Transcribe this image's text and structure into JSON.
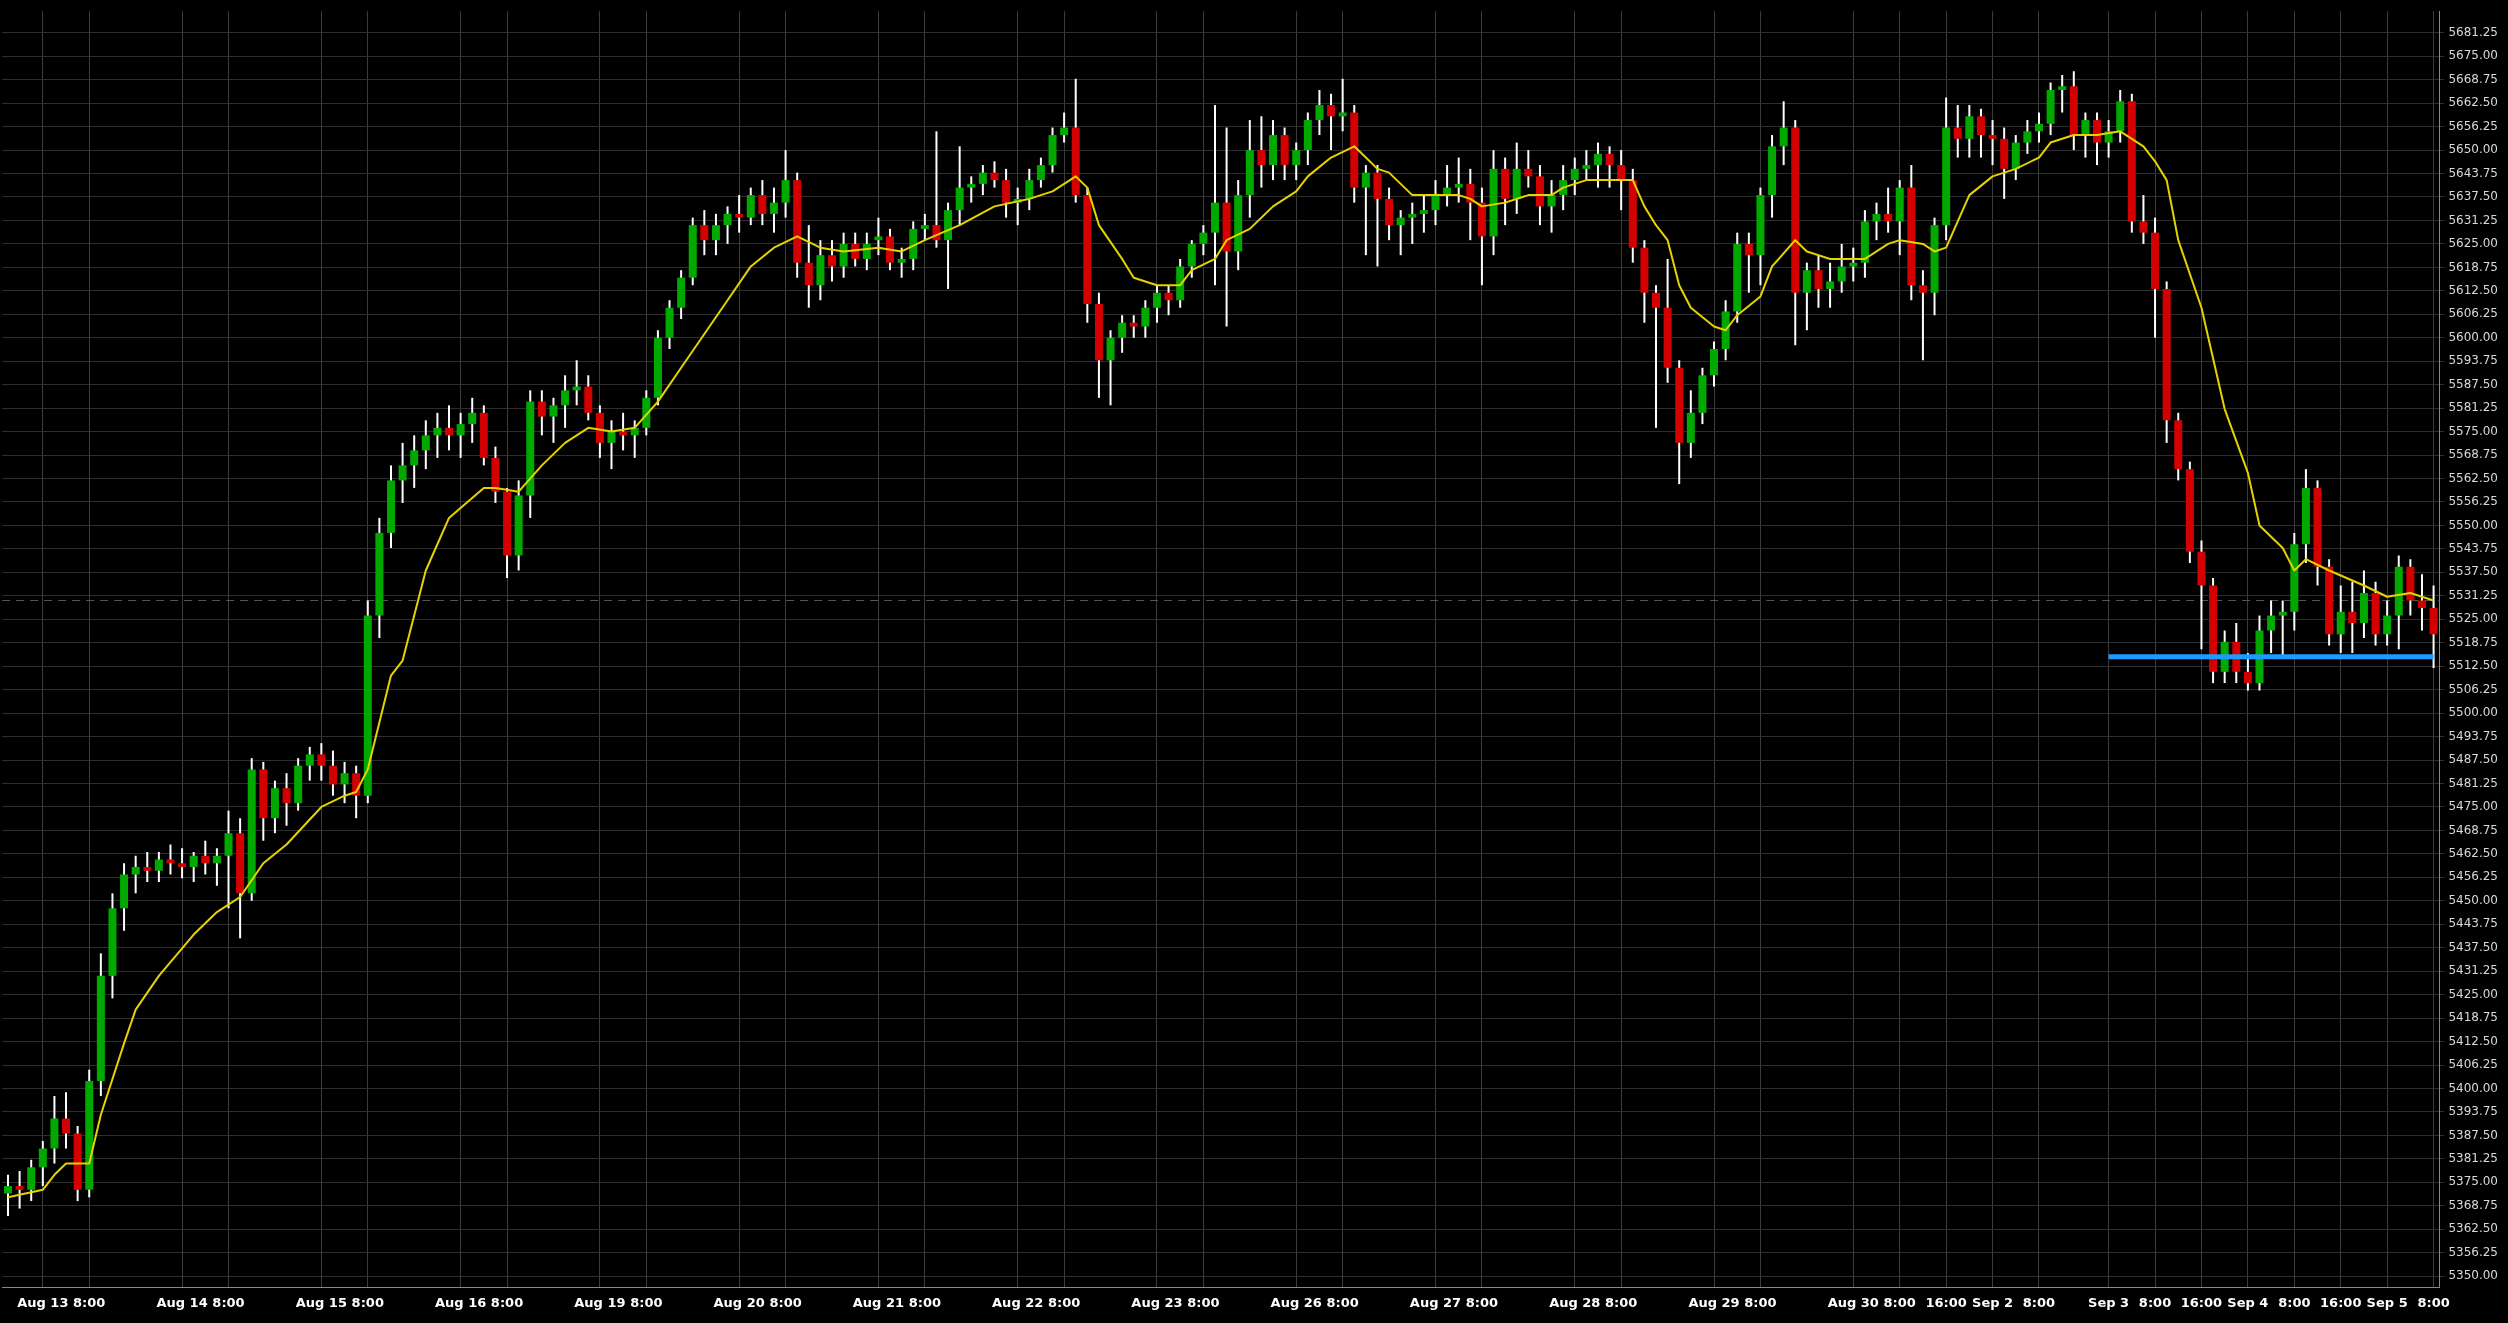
{
  "chart_data": {
    "type": "candlestick",
    "grid": true,
    "categories": [
      null,
      null,
      null,
      "Aug 13",
      null,
      null,
      null,
      "8:00",
      null,
      null,
      null,
      null,
      null,
      null,
      null,
      "Aug 14",
      null,
      null,
      null,
      "8:00",
      null,
      null,
      null,
      null,
      null,
      null,
      null,
      "Aug 15",
      null,
      null,
      null,
      "8:00",
      null,
      null,
      null,
      null,
      null,
      null,
      null,
      "Aug 16",
      null,
      null,
      null,
      "8:00",
      null,
      null,
      null,
      null,
      null,
      null,
      null,
      "Aug 19",
      null,
      null,
      null,
      "8:00",
      null,
      null,
      null,
      null,
      null,
      null,
      null,
      "Aug 20",
      null,
      null,
      null,
      "8:00",
      null,
      null,
      null,
      null,
      null,
      null,
      null,
      "Aug 21",
      null,
      null,
      null,
      "8:00",
      null,
      null,
      null,
      null,
      null,
      null,
      null,
      "Aug 22",
      null,
      null,
      null,
      "8:00",
      null,
      null,
      null,
      null,
      null,
      null,
      null,
      "Aug 23",
      null,
      null,
      null,
      "8:00",
      null,
      null,
      null,
      null,
      null,
      null,
      null,
      "Aug 26",
      null,
      null,
      null,
      "8:00",
      null,
      null,
      null,
      null,
      null,
      null,
      null,
      "Aug 27",
      null,
      null,
      null,
      "8:00",
      null,
      null,
      null,
      null,
      null,
      null,
      null,
      "Aug 28",
      null,
      null,
      null,
      "8:00",
      null,
      null,
      null,
      null,
      null,
      null,
      null,
      "Aug 29",
      null,
      null,
      null,
      "8:00",
      null,
      null,
      null,
      null,
      null,
      null,
      null,
      "Aug 30",
      null,
      null,
      null,
      "8:00",
      null,
      null,
      null,
      "16:00",
      null,
      null,
      null,
      "Sep 2",
      null,
      null,
      null,
      "8:00",
      null,
      null,
      null,
      null,
      null,
      "Sep 3",
      null,
      null,
      null,
      "8:00",
      null,
      null,
      null,
      "16:00",
      null,
      null,
      null,
      "Sep 4",
      null,
      null,
      null,
      "8:00",
      null,
      null,
      null,
      "16:00",
      null,
      null,
      null,
      "Sep 5",
      null,
      null,
      null,
      "8:00"
    ],
    "ohlc": [
      [
        5372,
        5377,
        5366,
        5374
      ],
      [
        5374,
        5378,
        5368,
        5373
      ],
      [
        5373,
        5381,
        5370,
        5379
      ],
      [
        5379,
        5386,
        5374,
        5384
      ],
      [
        5384,
        5398,
        5380,
        5392
      ],
      [
        5392,
        5399,
        5384,
        5388
      ],
      [
        5388,
        5390,
        5370,
        5373
      ],
      [
        5373,
        5405,
        5371,
        5402
      ],
      [
        5402,
        5436,
        5398,
        5430
      ],
      [
        5430,
        5452,
        5424,
        5448
      ],
      [
        5448,
        5460,
        5442,
        5457
      ],
      [
        5457,
        5462,
        5452,
        5459
      ],
      [
        5459,
        5463,
        5455,
        5458
      ],
      [
        5458,
        5463,
        5455,
        5461
      ],
      [
        5461,
        5465,
        5457,
        5460
      ],
      [
        5460,
        5464,
        5456,
        5459
      ],
      [
        5459,
        5463,
        5455,
        5462
      ],
      [
        5462,
        5466,
        5457,
        5460
      ],
      [
        5460,
        5464,
        5454,
        5462
      ],
      [
        5462,
        5474,
        5448,
        5468
      ],
      [
        5468,
        5472,
        5440,
        5452
      ],
      [
        5452,
        5488,
        5450,
        5485
      ],
      [
        5485,
        5487,
        5466,
        5472
      ],
      [
        5472,
        5482,
        5468,
        5480
      ],
      [
        5480,
        5484,
        5470,
        5476
      ],
      [
        5476,
        5488,
        5474,
        5486
      ],
      [
        5486,
        5491,
        5482,
        5489
      ],
      [
        5489,
        5492,
        5482,
        5486
      ],
      [
        5486,
        5490,
        5478,
        5481
      ],
      [
        5481,
        5487,
        5476,
        5484
      ],
      [
        5484,
        5486,
        5472,
        5478
      ],
      [
        5478,
        5530,
        5476,
        5526
      ],
      [
        5526,
        5552,
        5520,
        5548
      ],
      [
        5548,
        5566,
        5544,
        5562
      ],
      [
        5562,
        5572,
        5556,
        5566
      ],
      [
        5566,
        5574,
        5560,
        5570
      ],
      [
        5570,
        5578,
        5565,
        5574
      ],
      [
        5574,
        5580,
        5568,
        5576
      ],
      [
        5576,
        5582,
        5570,
        5574
      ],
      [
        5574,
        5580,
        5568,
        5577
      ],
      [
        5577,
        5584,
        5572,
        5580
      ],
      [
        5580,
        5582,
        5566,
        5568
      ],
      [
        5568,
        5571,
        5556,
        5559
      ],
      [
        5559,
        5560,
        5536,
        5542
      ],
      [
        5542,
        5562,
        5538,
        5558
      ],
      [
        5558,
        5586,
        5552,
        5583
      ],
      [
        5583,
        5586,
        5574,
        5579
      ],
      [
        5579,
        5584,
        5572,
        5582
      ],
      [
        5582,
        5590,
        5576,
        5586
      ],
      [
        5586,
        5594,
        5582,
        5587
      ],
      [
        5587,
        5590,
        5578,
        5580
      ],
      [
        5580,
        5582,
        5568,
        5572
      ],
      [
        5572,
        5578,
        5565,
        5575
      ],
      [
        5575,
        5580,
        5570,
        5574
      ],
      [
        5574,
        5578,
        5568,
        5576
      ],
      [
        5576,
        5586,
        5574,
        5584
      ],
      [
        5584,
        5602,
        5582,
        5600
      ],
      [
        5600,
        5610,
        5597,
        5608
      ],
      [
        5608,
        5618,
        5605,
        5616
      ],
      [
        5616,
        5632,
        5614,
        5630
      ],
      [
        5630,
        5634,
        5622,
        5626
      ],
      [
        5626,
        5633,
        5622,
        5630
      ],
      [
        5630,
        5635,
        5625,
        5633
      ],
      [
        5633,
        5638,
        5628,
        5632
      ],
      [
        5632,
        5640,
        5630,
        5638
      ],
      [
        5638,
        5642,
        5630,
        5633
      ],
      [
        5633,
        5640,
        5628,
        5636
      ],
      [
        5636,
        5650,
        5632,
        5642
      ],
      [
        5642,
        5644,
        5616,
        5620
      ],
      [
        5620,
        5630,
        5608,
        5614
      ],
      [
        5614,
        5626,
        5610,
        5622
      ],
      [
        5622,
        5626,
        5615,
        5619
      ],
      [
        5619,
        5628,
        5616,
        5625
      ],
      [
        5625,
        5628,
        5619,
        5621
      ],
      [
        5621,
        5628,
        5618,
        5625
      ],
      [
        5626,
        5632,
        5622,
        5627
      ],
      [
        5627,
        5629,
        5618,
        5620
      ],
      [
        5620,
        5624,
        5616,
        5621
      ],
      [
        5621,
        5631,
        5618,
        5629
      ],
      [
        5629,
        5633,
        5626,
        5630
      ],
      [
        5630,
        5655,
        5624,
        5626
      ],
      [
        5626,
        5636,
        5613,
        5634
      ],
      [
        5634,
        5651,
        5630,
        5640
      ],
      [
        5640,
        5643,
        5636,
        5641
      ],
      [
        5641,
        5646,
        5638,
        5644
      ],
      [
        5644,
        5647,
        5640,
        5642
      ],
      [
        5642,
        5645,
        5632,
        5636
      ],
      [
        5636,
        5640,
        5630,
        5637
      ],
      [
        5637,
        5645,
        5634,
        5642
      ],
      [
        5642,
        5648,
        5640,
        5646
      ],
      [
        5646,
        5656,
        5644,
        5654
      ],
      [
        5654,
        5660,
        5652,
        5656
      ],
      [
        5656,
        5669,
        5636,
        5638
      ],
      [
        5638,
        5640,
        5604,
        5609
      ],
      [
        5609,
        5612,
        5584,
        5594
      ],
      [
        5594,
        5602,
        5582,
        5600
      ],
      [
        5600,
        5606,
        5596,
        5604
      ],
      [
        5604,
        5606,
        5600,
        5603
      ],
      [
        5603,
        5610,
        5600,
        5608
      ],
      [
        5608,
        5614,
        5604,
        5612
      ],
      [
        5612,
        5614,
        5606,
        5610
      ],
      [
        5610,
        5621,
        5608,
        5619
      ],
      [
        5619,
        5626,
        5616,
        5625
      ],
      [
        5625,
        5630,
        5622,
        5628
      ],
      [
        5628,
        5662,
        5614,
        5636
      ],
      [
        5636,
        5656,
        5603,
        5623
      ],
      [
        5623,
        5642,
        5618,
        5638
      ],
      [
        5638,
        5658,
        5632,
        5650
      ],
      [
        5650,
        5659,
        5640,
        5646
      ],
      [
        5646,
        5658,
        5642,
        5654
      ],
      [
        5654,
        5656,
        5642,
        5646
      ],
      [
        5646,
        5652,
        5642,
        5650
      ],
      [
        5650,
        5660,
        5646,
        5658
      ],
      [
        5658,
        5666,
        5654,
        5662
      ],
      [
        5662,
        5665,
        5650,
        5659
      ],
      [
        5659,
        5669,
        5655,
        5660
      ],
      [
        5660,
        5662,
        5636,
        5640
      ],
      [
        5640,
        5646,
        5622,
        5644
      ],
      [
        5644,
        5646,
        5619,
        5637
      ],
      [
        5637,
        5640,
        5626,
        5630
      ],
      [
        5630,
        5634,
        5622,
        5632
      ],
      [
        5632,
        5636,
        5625,
        5633
      ],
      [
        5633,
        5638,
        5628,
        5634
      ],
      [
        5634,
        5642,
        5630,
        5638
      ],
      [
        5638,
        5646,
        5635,
        5640
      ],
      [
        5640,
        5648,
        5636,
        5641
      ],
      [
        5641,
        5645,
        5626,
        5636
      ],
      [
        5636,
        5640,
        5614,
        5627
      ],
      [
        5627,
        5650,
        5622,
        5645
      ],
      [
        5645,
        5648,
        5630,
        5637
      ],
      [
        5637,
        5652,
        5633,
        5645
      ],
      [
        5645,
        5650,
        5640,
        5643
      ],
      [
        5643,
        5646,
        5630,
        5635
      ],
      [
        5635,
        5642,
        5628,
        5638
      ],
      [
        5638,
        5646,
        5634,
        5642
      ],
      [
        5642,
        5648,
        5638,
        5645
      ],
      [
        5645,
        5650,
        5642,
        5646
      ],
      [
        5646,
        5652,
        5640,
        5649
      ],
      [
        5649,
        5651,
        5640,
        5646
      ],
      [
        5646,
        5650,
        5634,
        5642
      ],
      [
        5642,
        5645,
        5620,
        5624
      ],
      [
        5624,
        5626,
        5604,
        5612
      ],
      [
        5612,
        5614,
        5576,
        5608
      ],
      [
        5608,
        5621,
        5588,
        5592
      ],
      [
        5592,
        5594,
        5561,
        5572
      ],
      [
        5572,
        5586,
        5568,
        5580
      ],
      [
        5580,
        5592,
        5577,
        5590
      ],
      [
        5590,
        5599,
        5587,
        5597
      ],
      [
        5597,
        5610,
        5594,
        5607
      ],
      [
        5607,
        5628,
        5604,
        5625
      ],
      [
        5625,
        5628,
        5612,
        5622
      ],
      [
        5622,
        5640,
        5614,
        5638
      ],
      [
        5638,
        5654,
        5632,
        5651
      ],
      [
        5651,
        5663,
        5646,
        5656
      ],
      [
        5656,
        5658,
        5598,
        5612
      ],
      [
        5612,
        5620,
        5602,
        5618
      ],
      [
        5618,
        5622,
        5608,
        5613
      ],
      [
        5613,
        5620,
        5608,
        5615
      ],
      [
        5615,
        5625,
        5612,
        5619
      ],
      [
        5619,
        5624,
        5615,
        5620
      ],
      [
        5620,
        5634,
        5616,
        5631
      ],
      [
        5631,
        5636,
        5626,
        5633
      ],
      [
        5633,
        5640,
        5628,
        5631
      ],
      [
        5631,
        5642,
        5622,
        5640
      ],
      [
        5640,
        5646,
        5610,
        5614
      ],
      [
        5614,
        5618,
        5594,
        5612
      ],
      [
        5612,
        5632,
        5606,
        5630
      ],
      [
        5630,
        5664,
        5626,
        5656
      ],
      [
        5656,
        5662,
        5648,
        5653
      ],
      [
        5653,
        5662,
        5648,
        5659
      ],
      [
        5659,
        5661,
        5648,
        5654
      ],
      [
        5654,
        5658,
        5646,
        5653
      ],
      [
        5653,
        5656,
        5637,
        5645
      ],
      [
        5645,
        5654,
        5642,
        5652
      ],
      [
        5652,
        5658,
        5649,
        5655
      ],
      [
        5655,
        5660,
        5652,
        5657
      ],
      [
        5657,
        5668,
        5654,
        5666
      ],
      [
        5666,
        5670,
        5660,
        5667
      ],
      [
        5667,
        5671,
        5650,
        5654
      ],
      [
        5654,
        5660,
        5648,
        5658
      ],
      [
        5658,
        5660,
        5646,
        5652
      ],
      [
        5652,
        5658,
        5648,
        5655
      ],
      [
        5655,
        5666,
        5652,
        5663
      ],
      [
        5663,
        5665,
        5628,
        5631
      ],
      [
        5631,
        5638,
        5625,
        5628
      ],
      [
        5628,
        5632,
        5600,
        5613
      ],
      [
        5613,
        5615,
        5572,
        5578
      ],
      [
        5578,
        5580,
        5562,
        5565
      ],
      [
        5565,
        5567,
        5540,
        5543
      ],
      [
        5543,
        5546,
        5517,
        5534
      ],
      [
        5534,
        5536,
        5508,
        5511
      ],
      [
        5511,
        5522,
        5508,
        5519
      ],
      [
        5519,
        5524,
        5508,
        5511
      ],
      [
        5511,
        5516,
        5506,
        5508
      ],
      [
        5508,
        5526,
        5506,
        5522
      ],
      [
        5522,
        5530,
        5516,
        5526
      ],
      [
        5526,
        5530,
        5515,
        5527
      ],
      [
        5527,
        5548,
        5522,
        5545
      ],
      [
        5545,
        5565,
        5540,
        5560
      ],
      [
        5560,
        5562,
        5534,
        5539
      ],
      [
        5539,
        5541,
        5518,
        5521
      ],
      [
        5521,
        5534,
        5516,
        5527
      ],
      [
        5527,
        5535,
        5516,
        5524
      ],
      [
        5524,
        5538,
        5520,
        5532
      ],
      [
        5532,
        5535,
        5518,
        5521
      ],
      [
        5521,
        5530,
        5518,
        5526
      ],
      [
        5526,
        5542,
        5517,
        5539
      ],
      [
        5539,
        5541,
        5526,
        5530
      ],
      [
        5530,
        5537,
        5522,
        5528
      ],
      [
        5528,
        5534,
        5512,
        5521
      ]
    ],
    "colors": [
      "#00a800",
      "#d40000",
      "#00a800",
      "#00a800",
      "#00a800",
      "#d40000",
      "#d40000",
      "#00a800",
      "#00a800",
      "#00a800",
      "#00a800",
      "#00a800",
      "#d40000",
      "#00a800",
      "#d40000",
      "#d40000",
      "#00a800",
      "#d40000",
      "#00a800",
      "#00a800",
      "#d40000",
      "#00a800",
      "#d40000",
      "#00a800",
      "#d40000",
      "#00a800",
      "#00a800",
      "#d40000",
      "#d40000",
      "#00a800",
      "#d40000",
      "#00a800",
      "#00a800",
      "#00a800",
      "#00a800",
      "#00a800",
      "#00a800",
      "#00a800",
      "#d40000",
      "#00a800",
      "#00a800",
      "#d40000",
      "#d40000",
      "#d40000",
      "#00a800",
      "#00a800",
      "#d40000",
      "#00a800",
      "#00a800",
      "#00a800",
      "#d40000",
      "#d40000",
      "#00a800",
      "#d40000",
      "#00a800",
      "#00a800",
      "#00a800",
      "#00a800",
      "#00a800",
      "#00a800",
      "#d40000",
      "#00a800",
      "#00a800",
      "#d40000",
      "#00a800",
      "#d40000",
      "#00a800",
      "#00a800",
      "#d40000",
      "#d40000",
      "#00a800",
      "#d40000",
      "#00a800",
      "#d40000",
      "#00a800",
      "#00a800",
      "#d40000",
      "#00a800",
      "#00a800",
      "#00a800",
      "#d40000",
      "#00a800",
      "#00a800",
      "#00a800",
      "#00a800",
      "#d40000",
      "#d40000",
      "#00a800",
      "#00a800",
      "#00a800",
      "#00a800",
      "#00a800",
      "#d40000",
      "#d40000",
      "#d40000",
      "#00a800",
      "#00a800",
      "#d40000",
      "#00a800",
      "#00a800",
      "#d40000",
      "#00a800",
      "#00a800",
      "#00a800",
      "#00a800",
      "#d40000",
      "#00a800",
      "#00a800",
      "#d40000",
      "#00a800",
      "#d40000",
      "#00a800",
      "#00a800",
      "#00a800",
      "#d40000",
      "#00a800",
      "#d40000",
      "#00a800",
      "#d40000",
      "#d40000",
      "#00a800",
      "#00a800",
      "#00a800",
      "#00a800",
      "#00a800",
      "#00a800",
      "#d40000",
      "#d40000",
      "#00a800",
      "#d40000",
      "#00a800",
      "#d40000",
      "#d40000",
      "#00a800",
      "#00a800",
      "#00a800",
      "#00a800",
      "#00a800",
      "#d40000",
      "#d40000",
      "#d40000",
      "#d40000",
      "#d40000",
      "#d40000",
      "#d40000",
      "#00a800",
      "#00a800",
      "#00a800",
      "#00a800",
      "#00a800",
      "#d40000",
      "#00a800",
      "#00a800",
      "#00a800",
      "#d40000",
      "#00a800",
      "#d40000",
      "#00a800",
      "#00a800",
      "#00a800",
      "#00a800",
      "#00a800",
      "#d40000",
      "#00a800",
      "#d40000",
      "#d40000",
      "#00a800",
      "#00a800",
      "#d40000",
      "#00a800",
      "#d40000",
      "#d40000",
      "#d40000",
      "#00a800",
      "#00a800",
      "#00a800",
      "#00a800",
      "#00a800",
      "#d40000",
      "#00a800",
      "#d40000",
      "#00a800",
      "#00a800",
      "#d40000",
      "#d40000",
      "#d40000",
      "#d40000",
      "#d40000",
      "#d40000",
      "#d40000",
      "#d40000",
      "#00a800",
      "#d40000",
      "#d40000",
      "#00a800",
      "#00a800",
      "#00a800",
      "#00a800",
      "#00a800",
      "#d40000",
      "#d40000",
      "#00a800",
      "#d40000",
      "#00a800",
      "#d40000",
      "#00a800",
      "#00a800",
      "#d40000",
      "#d40000",
      "#d40000"
    ],
    "series": [
      {
        "type": "line",
        "color": "#e6d200",
        "values": [
          5371,
          null,
          null,
          5373,
          5377,
          5380,
          null,
          5380,
          5393,
          null,
          5412,
          5421,
          null,
          5430,
          null,
          null,
          5441,
          null,
          5447,
          null,
          5451,
          null,
          5460,
          null,
          5465,
          null,
          null,
          5475,
          null,
          5478,
          5479,
          5485,
          null,
          5510,
          5514,
          null,
          5538,
          null,
          5552,
          null,
          null,
          5560,
          5560,
          null,
          5559,
          null,
          5566,
          null,
          5572,
          null,
          5576,
          null,
          5575,
          null,
          5576,
          null,
          5583,
          null,
          5592,
          null,
          5601,
          null,
          5610,
          null,
          5619,
          null,
          5624,
          null,
          5627,
          null,
          5624,
          null,
          5623,
          null,
          null,
          5624,
          null,
          5623,
          null,
          5626,
          null,
          null,
          5630,
          null,
          null,
          5635,
          null,
          null,
          5637,
          null,
          5639,
          null,
          5643,
          5640,
          5630,
          null,
          5621,
          5616,
          null,
          5614,
          null,
          5614,
          5618,
          null,
          5621,
          5626,
          null,
          5629,
          null,
          5635,
          null,
          5639,
          5643,
          null,
          5648,
          null,
          5651,
          5648,
          5645,
          5644,
          5641,
          5638,
          null,
          5638,
          null,
          5638,
          5637,
          5635,
          null,
          5636,
          null,
          5638,
          null,
          5638,
          5640,
          null,
          5642,
          null,
          5642,
          null,
          5642,
          5635,
          5630,
          5626,
          5614,
          5608,
          null,
          5603,
          5602,
          5606,
          null,
          5611,
          5619,
          null,
          5626,
          5623,
          null,
          5621,
          5621,
          null,
          5621,
          null,
          5625,
          5626,
          null,
          5625,
          5623,
          5624,
          5631,
          5638,
          null,
          5643,
          null,
          5645,
          null,
          5648,
          5652,
          null,
          5654,
          null,
          5654,
          null,
          5655,
          null,
          5651,
          5647,
          5642,
          5626,
          null,
          5608,
          null,
          5581,
          null,
          5564,
          5550,
          null,
          5544,
          5538,
          5541,
          null,
          5538,
          null,
          null,
          5534,
          null,
          5531,
          null,
          5532,
          null,
          5530
        ]
      },
      {
        "type": "line",
        "color": "#1e9bff",
        "values": [
          null,
          null,
          null,
          null,
          null,
          null,
          null,
          null,
          null,
          null,
          null,
          null,
          null,
          null,
          null,
          null,
          null,
          null,
          null,
          null,
          null,
          null,
          null,
          null,
          null,
          null,
          null,
          null,
          null,
          null,
          null,
          null,
          null,
          null,
          null,
          null,
          null,
          null,
          null,
          null,
          null,
          null,
          null,
          null,
          null,
          null,
          null,
          null,
          null,
          null,
          null,
          null,
          null,
          null,
          null,
          null,
          null,
          null,
          null,
          null,
          null,
          null,
          null,
          null,
          null,
          null,
          null,
          null,
          null,
          null,
          null,
          null,
          null,
          null,
          null,
          null,
          null,
          null,
          null,
          null,
          null,
          null,
          null,
          null,
          null,
          null,
          null,
          null,
          null,
          null,
          null,
          null,
          null,
          null,
          null,
          null,
          null,
          null,
          null,
          null,
          null,
          null,
          null,
          null,
          null,
          null,
          null,
          null,
          null,
          null,
          null,
          null,
          null,
          null,
          null,
          null,
          null,
          null,
          null,
          null,
          null,
          null,
          null,
          null,
          null,
          null,
          null,
          null,
          null,
          null,
          null,
          null,
          null,
          null,
          null,
          null,
          null,
          null,
          null,
          null,
          null,
          null,
          null,
          null,
          null,
          null,
          null,
          null,
          null,
          null,
          null,
          null,
          null,
          null,
          null,
          null,
          null,
          null,
          null,
          null,
          null,
          null,
          null,
          null,
          null,
          null,
          null,
          null,
          null,
          null,
          null,
          null,
          null,
          null,
          null,
          null,
          null,
          null,
          null,
          null,
          null,
          5515,
          null,
          null,
          null,
          null,
          null,
          null,
          null,
          null,
          null,
          null,
          null,
          null,
          null,
          null,
          null,
          null,
          null,
          null,
          null,
          null,
          null,
          null,
          null,
          null,
          null,
          null,
          null,
          5515
        ]
      }
    ],
    "ref_lines": [
      {
        "axis": "y",
        "value": 5530,
        "color": "#555555",
        "line_style": "dashed"
      }
    ],
    "ylim": [
      5347,
      5687
    ],
    "yticks": [
      {
        "value": 5350,
        "label": "5350.00"
      },
      {
        "value": 5356.25,
        "label": "5356.25"
      },
      {
        "value": 5362.5,
        "label": "5362.50"
      },
      {
        "value": 5368.75,
        "label": "5368.75"
      },
      {
        "value": 5375,
        "label": "5375.00"
      },
      {
        "value": 5381.25,
        "label": "5381.25"
      },
      {
        "value": 5387.5,
        "label": "5387.50"
      },
      {
        "value": 5393.75,
        "label": "5393.75"
      },
      {
        "value": 5400,
        "label": "5400.00"
      },
      {
        "value": 5406.25,
        "label": "5406.25"
      },
      {
        "value": 5412.5,
        "label": "5412.50"
      },
      {
        "value": 5418.75,
        "label": "5418.75"
      },
      {
        "value": 5425,
        "label": "5425.00"
      },
      {
        "value": 5431.25,
        "label": "5431.25"
      },
      {
        "value": 5437.5,
        "label": "5437.50"
      },
      {
        "value": 5443.75,
        "label": "5443.75"
      },
      {
        "value": 5450,
        "label": "5450.00"
      },
      {
        "value": 5456.25,
        "label": "5456.25"
      },
      {
        "value": 5462.5,
        "label": "5462.50"
      },
      {
        "value": 5468.75,
        "label": "5468.75"
      },
      {
        "value": 5475,
        "label": "5475.00"
      },
      {
        "value": 5481.25,
        "label": "5481.25"
      },
      {
        "value": 5487.5,
        "label": "5487.50"
      },
      {
        "value": 5493.75,
        "label": "5493.75"
      },
      {
        "value": 5500,
        "label": "5500.00"
      },
      {
        "value": 5506.25,
        "label": "5506.25"
      },
      {
        "value": 5512.5,
        "label": "5512.50"
      },
      {
        "value": 5518.75,
        "label": "5518.75"
      },
      {
        "value": 5525,
        "label": "5525.00"
      },
      {
        "value": 5531.25,
        "label": "5531.25"
      },
      {
        "value": 5537.5,
        "label": "5537.50"
      },
      {
        "value": 5543.75,
        "label": "5543.75"
      },
      {
        "value": 5550,
        "label": "5550.00"
      },
      {
        "value": 5556.25,
        "label": "5556.25"
      },
      {
        "value": 5562.5,
        "label": "5562.50"
      },
      {
        "value": 5568.75,
        "label": "5568.75"
      },
      {
        "value": 5575,
        "label": "5575.00"
      },
      {
        "value": 5581.25,
        "label": "5581.25"
      },
      {
        "value": 5587.5,
        "label": "5587.50"
      },
      {
        "value": 5593.75,
        "label": "5593.75"
      },
      {
        "value": 5600,
        "label": "5600.00"
      },
      {
        "value": 5606.25,
        "label": "5606.25"
      },
      {
        "value": 5612.5,
        "label": "5612.50"
      },
      {
        "value": 5618.75,
        "label": "5618.75"
      },
      {
        "value": 5625,
        "label": "5625.00"
      },
      {
        "value": 5631.25,
        "label": "5631.25"
      },
      {
        "value": 5637.5,
        "label": "5637.50"
      },
      {
        "value": 5643.75,
        "label": "5643.75"
      },
      {
        "value": 5650,
        "label": "5650.00"
      },
      {
        "value": 5656.25,
        "label": "5656.25"
      },
      {
        "value": 5662.5,
        "label": "5662.50"
      },
      {
        "value": 5668.75,
        "label": "5668.75"
      },
      {
        "value": 5675,
        "label": "5675.00"
      },
      {
        "value": 5681.25,
        "label": "5681.25"
      }
    ]
  }
}
